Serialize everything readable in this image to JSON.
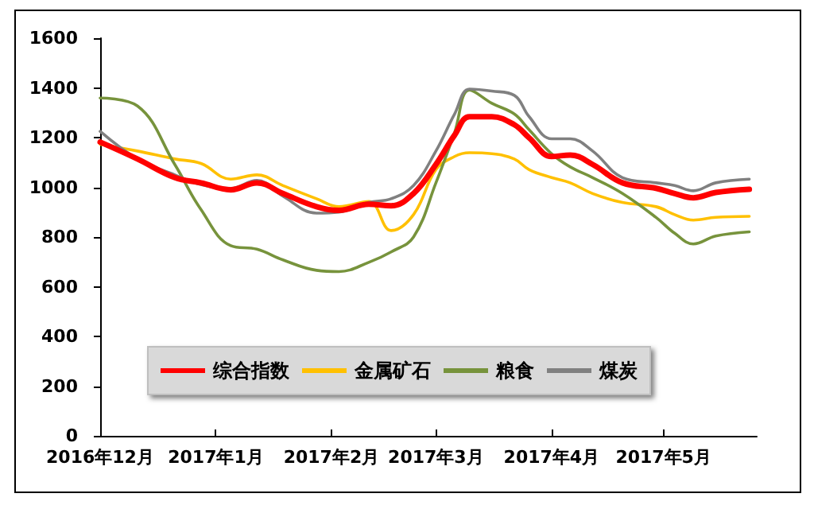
{
  "chart_data": {
    "type": "line",
    "x": [
      "2016-12-01",
      "2016-12-11",
      "2016-12-21",
      "2016-12-28",
      "2017-01-05",
      "2017-01-12",
      "2017-01-19",
      "2017-01-28",
      "2017-02-03",
      "2017-02-11",
      "2017-02-17",
      "2017-02-23",
      "2017-03-01",
      "2017-03-06",
      "2017-03-10",
      "2017-03-16",
      "2017-03-22",
      "2017-03-26",
      "2017-04-01",
      "2017-04-06",
      "2017-04-12",
      "2017-04-20",
      "2017-04-29",
      "2017-05-04",
      "2017-05-09",
      "2017-05-15",
      "2017-05-24"
    ],
    "series": [
      {
        "name": "综合指数",
        "color": "#ff0000",
        "values": [
          1182,
          1114,
          1039,
          1018,
          990,
          1018,
          975,
          922,
          907,
          932,
          926,
          975,
          1092,
          1210,
          1284,
          1284,
          1252,
          1199,
          1124,
          1130,
          1092,
          1018,
          996,
          975,
          958,
          979,
          992
        ]
      },
      {
        "name": "金属矿石",
        "color": "#ffc000",
        "values": [
          1173,
          1146,
          1114,
          1096,
          1033,
          1050,
          1007,
          954,
          922,
          943,
          826,
          890,
          1071,
          1124,
          1139,
          1135,
          1114,
          1071,
          1039,
          1018,
          975,
          939,
          922,
          890,
          868,
          879,
          883
        ]
      },
      {
        "name": "粮食",
        "color": "#77933c",
        "values": [
          1359,
          1327,
          1092,
          911,
          765,
          751,
          708,
          666,
          661,
          698,
          740,
          800,
          1018,
          1220,
          1391,
          1338,
          1295,
          1231,
          1135,
          1082,
          1039,
          975,
          879,
          815,
          772,
          804,
          821
        ]
      },
      {
        "name": "煤炭",
        "color": "#808080",
        "values": [
          1225,
          1114,
          1050,
          1011,
          996,
          1028,
          964,
          896,
          900,
          939,
          954,
          1007,
          1146,
          1295,
          1395,
          1387,
          1370,
          1284,
          1195,
          1195,
          1146,
          1039,
          1018,
          1007,
          986,
          1018,
          1033
        ]
      }
    ],
    "xlim": [
      "2016-12-01",
      "2017-05-26"
    ],
    "xticks": [
      {
        "value": "2016-12-01",
        "label": "2016年12月"
      },
      {
        "value": "2017-01-01",
        "label": "2017年1月"
      },
      {
        "value": "2017-02-01",
        "label": "2017年2月"
      },
      {
        "value": "2017-03-01",
        "label": "2017年3月"
      },
      {
        "value": "2017-04-01",
        "label": "2017年4月"
      },
      {
        "value": "2017-05-01",
        "label": "2017年5月"
      }
    ],
    "ylim": [
      0,
      1600
    ],
    "yticks": [
      0,
      200,
      400,
      600,
      800,
      1000,
      1200,
      1400,
      1600
    ],
    "grid": false,
    "legend": "bottom",
    "marker": "none",
    "line_style": "solid"
  }
}
